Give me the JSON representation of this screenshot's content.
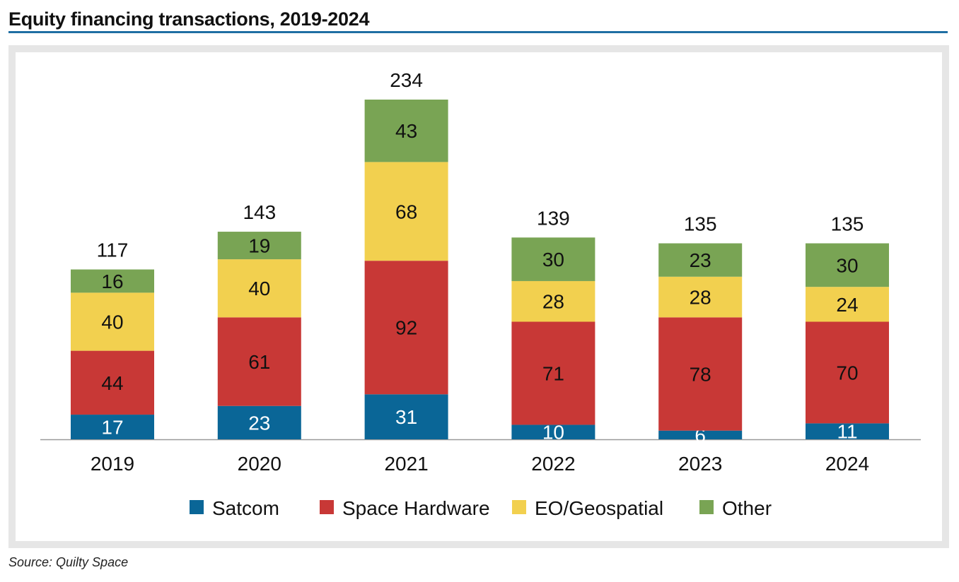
{
  "title": "Equity financing transactions, 2019-2024",
  "source": "Source: Quilty Space",
  "chart_data": {
    "type": "bar",
    "stacked": true,
    "title": "Equity financing transactions, 2019-2024",
    "categories": [
      "2019",
      "2020",
      "2021",
      "2022",
      "2023",
      "2024"
    ],
    "series": [
      {
        "name": "Satcom",
        "color": "#0a6697",
        "values": [
          17,
          23,
          31,
          10,
          6,
          11
        ]
      },
      {
        "name": "Space Hardware",
        "color": "#c83836",
        "values": [
          44,
          61,
          92,
          71,
          78,
          70
        ]
      },
      {
        "name": "EO/Geospatial",
        "color": "#f2d04f",
        "values": [
          40,
          40,
          68,
          28,
          28,
          24
        ]
      },
      {
        "name": "Other",
        "color": "#79a454",
        "values": [
          16,
          19,
          43,
          30,
          23,
          30
        ]
      }
    ],
    "totals": [
      117,
      143,
      234,
      139,
      135,
      135
    ],
    "legend": "bottom",
    "grid": false
  }
}
